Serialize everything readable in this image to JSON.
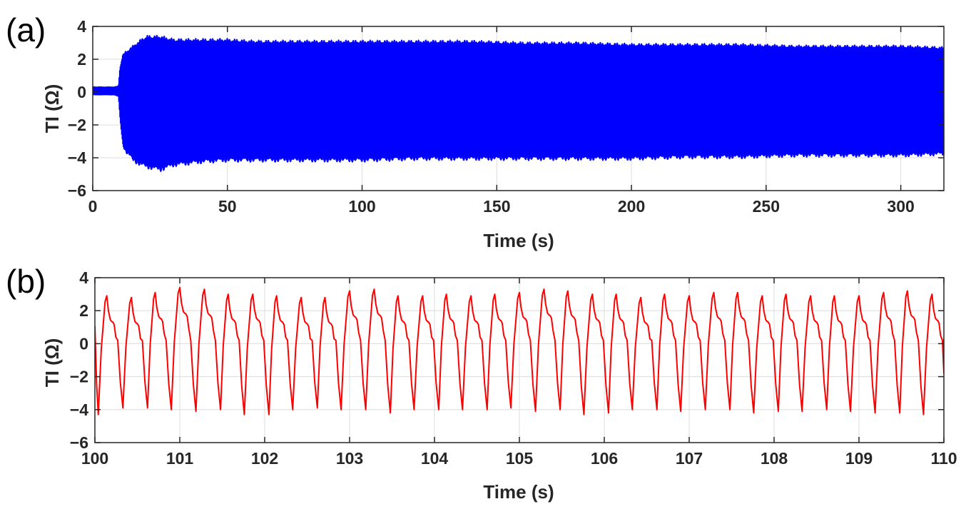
{
  "chart_data": [
    {
      "panel_label": "(a)",
      "type": "line",
      "xlabel": "Time (s)",
      "ylabel": "TI (Ω)",
      "xlim": [
        0,
        316
      ],
      "ylim": [
        -6,
        4
      ],
      "xticks": [
        0,
        50,
        100,
        150,
        200,
        250,
        300
      ],
      "yticks": [
        -6,
        -4,
        -2,
        0,
        2,
        4
      ],
      "xtick_labels": [
        "0",
        "50",
        "100",
        "150",
        "200",
        "250",
        "300"
      ],
      "ytick_labels": [
        "−6",
        "−4",
        "−2",
        "0",
        "2",
        "4"
      ],
      "grid": true,
      "color": "#0000ff",
      "series": [
        {
          "x": [
            0,
            2,
            5,
            8,
            9.5,
            10,
            11,
            12,
            15,
            18,
            20,
            25,
            30,
            40,
            50,
            60,
            70,
            80,
            90,
            100,
            120,
            140,
            160,
            180,
            200,
            220,
            240,
            260,
            280,
            300,
            316
          ],
          "upper": [
            0.35,
            0.35,
            0.35,
            0.35,
            0.4,
            1.5,
            2.3,
            2.5,
            2.9,
            3.3,
            3.5,
            3.5,
            3.3,
            3.3,
            3.3,
            3.2,
            3.2,
            3.2,
            3.2,
            3.2,
            3.2,
            3.2,
            3.1,
            3.1,
            3.0,
            3.0,
            3.0,
            2.9,
            2.9,
            2.9,
            2.8
          ],
          "lower": [
            -0.2,
            -0.2,
            -0.2,
            -0.2,
            -0.3,
            -1.5,
            -3.2,
            -3.7,
            -4.3,
            -4.6,
            -4.7,
            -4.9,
            -4.6,
            -4.4,
            -4.3,
            -4.3,
            -4.3,
            -4.3,
            -4.3,
            -4.3,
            -4.2,
            -4.2,
            -4.2,
            -4.2,
            -4.2,
            -4.1,
            -4.1,
            -4.0,
            -4.0,
            -4.0,
            -3.9
          ]
        }
      ]
    },
    {
      "panel_label": "(b)",
      "type": "line",
      "xlabel": "Time (s)",
      "ylabel": "TI (Ω)",
      "xlim": [
        100,
        110
      ],
      "ylim": [
        -6,
        4
      ],
      "xticks": [
        100,
        101,
        102,
        103,
        104,
        105,
        106,
        107,
        108,
        109,
        110
      ],
      "yticks": [
        -6,
        -4,
        -2,
        0,
        2,
        4
      ],
      "xtick_labels": [
        "100",
        "101",
        "102",
        "103",
        "104",
        "105",
        "106",
        "107",
        "108",
        "109",
        "110"
      ],
      "ytick_labels": [
        "−6",
        "−4",
        "−2",
        "0",
        "2",
        "4"
      ],
      "grid": true,
      "color": "#ff0000",
      "series": [
        {
          "x_start": 100,
          "start_value": 1.05,
          "end_value": 0.3,
          "troughs_x": [
            100.04,
            100.33,
            100.62,
            100.9,
            101.19,
            101.48,
            101.76,
            102.05,
            102.33,
            102.62,
            102.9,
            103.19,
            103.48,
            103.76,
            104.05,
            104.33,
            104.62,
            104.9,
            105.19,
            105.48,
            105.76,
            106.05,
            106.33,
            106.62,
            106.9,
            107.19,
            107.48,
            107.76,
            108.05,
            108.33,
            108.62,
            108.9,
            109.19,
            109.48,
            109.76
          ],
          "troughs_y": [
            -4.3,
            -3.9,
            -3.9,
            -4.0,
            -4.1,
            -4.0,
            -4.3,
            -4.3,
            -4.0,
            -3.9,
            -4.0,
            -4.0,
            -4.2,
            -4.0,
            -4.0,
            -4.0,
            -4.0,
            -3.9,
            -4.1,
            -4.0,
            -4.3,
            -4.2,
            -4.0,
            -4.0,
            -4.1,
            -4.0,
            -4.0,
            -4.2,
            -4.1,
            -4.1,
            -4.0,
            -4.1,
            -4.2,
            -4.2,
            -4.3
          ],
          "peaks_x": [
            100.14,
            100.43,
            100.71,
            101.0,
            101.29,
            101.57,
            101.86,
            102.14,
            102.43,
            102.71,
            103.0,
            103.29,
            103.57,
            103.86,
            104.14,
            104.43,
            104.71,
            105.0,
            105.29,
            105.57,
            105.86,
            106.14,
            106.43,
            106.71,
            107.0,
            107.29,
            107.57,
            107.86,
            108.14,
            108.43,
            108.71,
            109.0,
            109.29,
            109.57,
            109.86
          ],
          "peaks_y": [
            2.9,
            2.8,
            3.1,
            3.4,
            3.3,
            3.0,
            3.0,
            2.9,
            2.8,
            2.8,
            3.2,
            3.3,
            2.9,
            2.9,
            3.0,
            2.9,
            3.0,
            3.1,
            3.3,
            3.2,
            3.0,
            3.0,
            2.8,
            3.0,
            2.9,
            3.1,
            3.1,
            2.9,
            3.0,
            2.9,
            2.9,
            2.9,
            3.1,
            3.2,
            3.0
          ]
        }
      ]
    }
  ]
}
